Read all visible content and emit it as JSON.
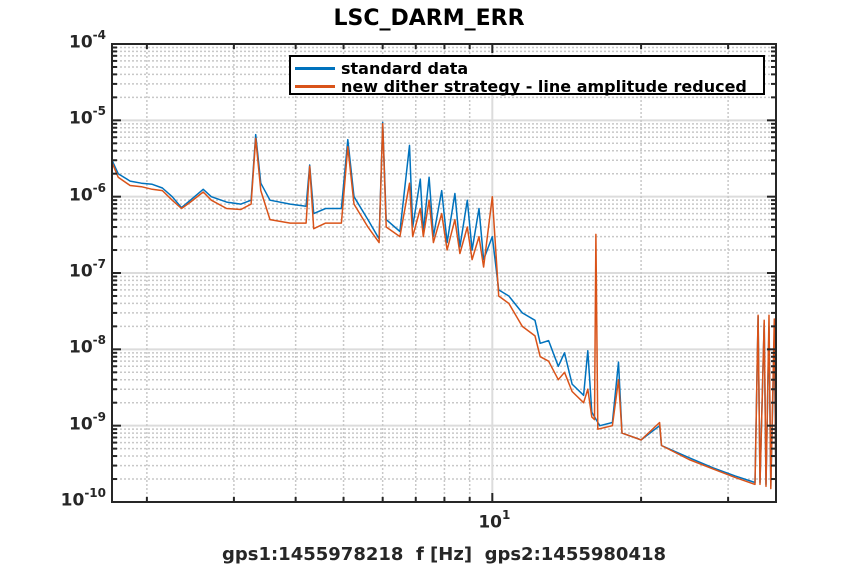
{
  "chart_data": {
    "type": "line",
    "title": "LSC_DARM_ERR",
    "xlabel": "gps1:1455978218  f [Hz]  gps2:1455980418",
    "ylabel": "",
    "xscale": "log",
    "yscale": "log",
    "xlim": [
      1.7,
      37.5
    ],
    "ylim": [
      1e-10,
      0.0001
    ],
    "grid": true,
    "minor_grid": true,
    "legend_position": "top-right",
    "x_ticks": [
      {
        "value": 10,
        "base": "10",
        "exp": "1"
      }
    ],
    "y_ticks": [
      {
        "value": 0.0001,
        "base": "10",
        "exp": "-4"
      },
      {
        "value": 1e-05,
        "base": "10",
        "exp": "-5"
      },
      {
        "value": 1e-06,
        "base": "10",
        "exp": "-6"
      },
      {
        "value": 1e-07,
        "base": "10",
        "exp": "-7"
      },
      {
        "value": 1e-08,
        "base": "10",
        "exp": "-8"
      },
      {
        "value": 1e-09,
        "base": "10",
        "exp": "-9"
      },
      {
        "value": 1e-10,
        "base": "10",
        "exp": "-10"
      }
    ],
    "series": [
      {
        "name": "standard data",
        "color": "#0072BD",
        "points": [
          [
            1.7,
            3e-06
          ],
          [
            1.75,
            2e-06
          ],
          [
            1.85,
            1.6e-06
          ],
          [
            1.95,
            1.5e-06
          ],
          [
            2.05,
            1.45e-06
          ],
          [
            2.15,
            1.3e-06
          ],
          [
            2.25,
            1e-06
          ],
          [
            2.35,
            7.2e-07
          ],
          [
            2.45,
            9e-07
          ],
          [
            2.6,
            1.25e-06
          ],
          [
            2.7,
            1e-06
          ],
          [
            2.9,
            8.5e-07
          ],
          [
            3.1,
            8e-07
          ],
          [
            3.25,
            9e-07
          ],
          [
            3.32,
            6.5e-06
          ],
          [
            3.4,
            1.5e-06
          ],
          [
            3.55,
            9e-07
          ],
          [
            3.9,
            8e-07
          ],
          [
            4.2,
            7.5e-07
          ],
          [
            4.27,
            2.6e-06
          ],
          [
            4.35,
            6e-07
          ],
          [
            4.6,
            7e-07
          ],
          [
            4.95,
            7e-07
          ],
          [
            5.1,
            5.6e-06
          ],
          [
            5.25,
            1e-06
          ],
          [
            5.6,
            5e-07
          ],
          [
            5.9,
            2.8e-07
          ],
          [
            6.0,
            9.4e-06
          ],
          [
            6.1,
            5e-07
          ],
          [
            6.5,
            3.5e-07
          ],
          [
            6.8,
            4.7e-06
          ],
          [
            6.9,
            4e-07
          ],
          [
            7.15,
            1.7e-06
          ],
          [
            7.25,
            3.5e-07
          ],
          [
            7.45,
            1.8e-06
          ],
          [
            7.6,
            3e-07
          ],
          [
            7.9,
            1.2e-06
          ],
          [
            8.1,
            2.5e-07
          ],
          [
            8.4,
            1.1e-06
          ],
          [
            8.6,
            2.2e-07
          ],
          [
            8.9,
            9e-07
          ],
          [
            9.1,
            2e-07
          ],
          [
            9.4,
            7e-07
          ],
          [
            9.6,
            1.5e-07
          ],
          [
            10.0,
            3e-07
          ],
          [
            10.3,
            6e-08
          ],
          [
            10.8,
            5e-08
          ],
          [
            11.5,
            3e-08
          ],
          [
            12.2,
            2.4e-08
          ],
          [
            12.5,
            1.2e-08
          ],
          [
            13.0,
            1.3e-08
          ],
          [
            13.6,
            6e-09
          ],
          [
            14.0,
            9e-09
          ],
          [
            14.5,
            3.5e-09
          ],
          [
            15.3,
            2.5e-09
          ],
          [
            15.6,
            9.6e-09
          ],
          [
            15.9,
            1.5e-09
          ],
          [
            16.5,
            1e-09
          ],
          [
            17.5,
            1.1e-09
          ],
          [
            18.0,
            6.8e-09
          ],
          [
            18.3,
            8e-10
          ],
          [
            20,
            6.5e-10
          ],
          [
            21.8,
            1e-09
          ],
          [
            22,
            5.5e-10
          ],
          [
            25,
            3.8e-10
          ],
          [
            28,
            2.8e-10
          ],
          [
            31,
            2.2e-10
          ],
          [
            34,
            1.8e-10
          ],
          [
            34.5,
            2.7e-08
          ],
          [
            34.8,
            1.8e-10
          ],
          [
            35.5,
            2.2e-08
          ],
          [
            35.8,
            1.7e-10
          ],
          [
            36.3,
            2e-08
          ],
          [
            36.6,
            1.6e-10
          ],
          [
            37.2,
            1.5e-08
          ],
          [
            37.5,
            1.5e-10
          ]
        ]
      },
      {
        "name": "new dither strategy - line amplitude reduced",
        "color": "#D95319",
        "points": [
          [
            1.7,
            2.8e-06
          ],
          [
            1.75,
            1.8e-06
          ],
          [
            1.85,
            1.4e-06
          ],
          [
            1.95,
            1.35e-06
          ],
          [
            2.05,
            1.25e-06
          ],
          [
            2.15,
            1.2e-06
          ],
          [
            2.25,
            9e-07
          ],
          [
            2.35,
            7e-07
          ],
          [
            2.45,
            8.5e-07
          ],
          [
            2.6,
            1.15e-06
          ],
          [
            2.7,
            9e-07
          ],
          [
            2.9,
            7e-07
          ],
          [
            3.1,
            6.8e-07
          ],
          [
            3.25,
            8e-07
          ],
          [
            3.32,
            5.8e-06
          ],
          [
            3.4,
            1.2e-06
          ],
          [
            3.55,
            5e-07
          ],
          [
            3.9,
            4.5e-07
          ],
          [
            4.2,
            4.5e-07
          ],
          [
            4.27,
            2.5e-06
          ],
          [
            4.35,
            3.8e-07
          ],
          [
            4.6,
            4.5e-07
          ],
          [
            4.95,
            4.5e-07
          ],
          [
            5.1,
            4.5e-06
          ],
          [
            5.25,
            8e-07
          ],
          [
            5.6,
            4e-07
          ],
          [
            5.9,
            2.5e-07
          ],
          [
            6.0,
            9e-06
          ],
          [
            6.1,
            4e-07
          ],
          [
            6.5,
            3e-07
          ],
          [
            6.8,
            1.5e-06
          ],
          [
            6.9,
            3e-07
          ],
          [
            7.15,
            7e-07
          ],
          [
            7.25,
            3e-07
          ],
          [
            7.45,
            9e-07
          ],
          [
            7.6,
            2.5e-07
          ],
          [
            7.9,
            6e-07
          ],
          [
            8.1,
            2e-07
          ],
          [
            8.4,
            5e-07
          ],
          [
            8.6,
            1.8e-07
          ],
          [
            8.9,
            4e-07
          ],
          [
            9.1,
            1.5e-07
          ],
          [
            9.4,
            3e-07
          ],
          [
            9.6,
            1.2e-07
          ],
          [
            10.0,
            1e-06
          ],
          [
            10.3,
            5e-08
          ],
          [
            10.8,
            4e-08
          ],
          [
            11.5,
            2e-08
          ],
          [
            12.2,
            1.5e-08
          ],
          [
            12.5,
            8e-09
          ],
          [
            13.0,
            7e-09
          ],
          [
            13.6,
            4e-09
          ],
          [
            14.0,
            5e-09
          ],
          [
            14.5,
            2.8e-09
          ],
          [
            15.3,
            2e-09
          ],
          [
            15.6,
            3e-09
          ],
          [
            15.9,
            1.3e-09
          ],
          [
            16.1,
            1.2e-09
          ],
          [
            16.2,
            3.2e-07
          ],
          [
            16.35,
            9e-10
          ],
          [
            17.5,
            1e-09
          ],
          [
            18.0,
            4e-09
          ],
          [
            18.3,
            8e-10
          ],
          [
            20,
            6.5e-10
          ],
          [
            21.8,
            1.1e-09
          ],
          [
            22,
            5.5e-10
          ],
          [
            25,
            3.6e-10
          ],
          [
            28,
            2.7e-10
          ],
          [
            31,
            2.1e-10
          ],
          [
            34,
            1.7e-10
          ],
          [
            34.5,
            2.8e-08
          ],
          [
            34.8,
            1.7e-10
          ],
          [
            35.5,
            2.4e-08
          ],
          [
            35.8,
            1.6e-10
          ],
          [
            36.3,
            2.8e-08
          ],
          [
            36.6,
            1.5e-10
          ],
          [
            37.2,
            2.5e-08
          ],
          [
            37.5,
            1.4e-10
          ]
        ]
      }
    ]
  }
}
